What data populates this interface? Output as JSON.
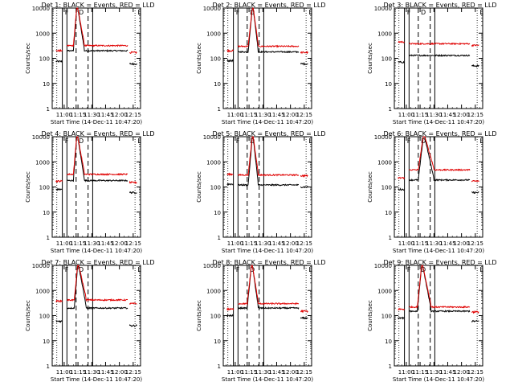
{
  "figure": {
    "background": "#ffffff",
    "axis_color": "#000000",
    "events_color": "#000000",
    "lld_color": "#e00000"
  },
  "chart_data": [
    {
      "type": "line",
      "title": "Det 1: BLACK = Events, RED = LLD",
      "xlabel": "Start Time (14-Dec-11 10:47:20)",
      "ylabel": "Counts/sec",
      "yscale": "log",
      "ylim": [
        1,
        10000
      ],
      "xlim": [
        "10:47",
        "12:23"
      ],
      "x_ticks": [
        "11:00",
        "11:15",
        "11:30",
        "11:45",
        "12:00",
        "12:15"
      ],
      "y_ticks": [
        "1",
        "10",
        "100",
        "1000",
        "10000"
      ],
      "markers": [
        "F",
        "D",
        "L"
      ],
      "dashed": [
        "11:13",
        "11:26"
      ],
      "solid": [
        "10:58",
        "11:03",
        "11:31"
      ],
      "gaps": [
        [
          "10:58",
          "11:03"
        ],
        [
          "11:31",
          "12:10"
        ]
      ],
      "peak": {
        "start": "11:10",
        "peak": "11:14",
        "end": "11:22"
      },
      "series": [
        {
          "name": "BLACK = Events",
          "pre": 75,
          "base": 200,
          "post": 60
        },
        {
          "name": "RED = LLD",
          "pre": 200,
          "base": 320,
          "post": 170
        }
      ]
    },
    {
      "type": "line",
      "title": "Det 2: BLACK = Events, RED = LLD",
      "xlabel": "Start Time (14-Dec-11 10:47:20)",
      "ylabel": "Counts/sec",
      "yscale": "log",
      "ylim": [
        1,
        10000
      ],
      "xlim": [
        "10:47",
        "12:23"
      ],
      "x_ticks": [
        "11:00",
        "11:15",
        "11:30",
        "11:45",
        "12:00",
        "12:15"
      ],
      "y_ticks": [
        "1",
        "10",
        "100",
        "1000",
        "10000"
      ],
      "markers": [
        "F",
        "D",
        "L"
      ],
      "dashed": [
        "11:13",
        "11:26"
      ],
      "solid": [
        "10:58",
        "11:03",
        "11:31"
      ],
      "gaps": [
        [
          "10:58",
          "11:03"
        ],
        [
          "11:31",
          "12:10"
        ]
      ],
      "peak": {
        "start": "11:14",
        "peak": "11:19",
        "end": "11:25"
      },
      "series": [
        {
          "name": "BLACK = Events",
          "pre": 80,
          "base": 180,
          "post": 60
        },
        {
          "name": "RED = LLD",
          "pre": 200,
          "base": 300,
          "post": 170
        }
      ]
    },
    {
      "type": "line",
      "title": "Det 3: BLACK = Events, RED = LLD",
      "xlabel": "Start Time (14-Dec-11 10:47:20)",
      "ylabel": "Counts/sec",
      "yscale": "log",
      "ylim": [
        1,
        10000
      ],
      "xlim": [
        "10:47",
        "12:23"
      ],
      "x_ticks": [
        "11:00",
        "11:15",
        "11:30",
        "11:45",
        "12:00",
        "12:15"
      ],
      "y_ticks": [
        "1",
        "10",
        "100",
        "1000",
        "10000"
      ],
      "markers": [
        "F",
        "D",
        "L"
      ],
      "dashed": [
        "11:13",
        "11:26"
      ],
      "solid": [
        "10:58",
        "11:03",
        "11:31"
      ],
      "gaps": [
        [
          "10:58",
          "11:03"
        ],
        [
          "11:31",
          "12:10"
        ]
      ],
      "peak": null,
      "series": [
        {
          "name": "BLACK = Events",
          "pre": 70,
          "base": 130,
          "post": 50
        },
        {
          "name": "RED = LLD",
          "pre": 450,
          "base": 380,
          "post": 330
        }
      ]
    },
    {
      "type": "line",
      "title": "Det 4: BLACK = Events, RED = LLD",
      "xlabel": "Start Time (14-Dec-11 10:47:20)",
      "ylabel": "Counts/sec",
      "yscale": "log",
      "ylim": [
        1,
        10000
      ],
      "xlim": [
        "10:47",
        "12:23"
      ],
      "x_ticks": [
        "11:00",
        "11:15",
        "11:30",
        "11:45",
        "12:00",
        "12:15"
      ],
      "y_ticks": [
        "1",
        "10",
        "100",
        "1000",
        "10000"
      ],
      "markers": [
        "F",
        "D",
        "L"
      ],
      "dashed": [
        "11:13",
        "11:26"
      ],
      "solid": [
        "10:58",
        "11:03",
        "11:31"
      ],
      "gaps": [
        [
          "10:58",
          "11:03"
        ],
        [
          "11:31",
          "12:10"
        ]
      ],
      "peak": {
        "start": "11:10",
        "peak": "11:14",
        "end": "11:22"
      },
      "series": [
        {
          "name": "BLACK = Events",
          "pre": 80,
          "base": 180,
          "post": 60
        },
        {
          "name": "RED = LLD",
          "pre": 170,
          "base": 320,
          "post": 150
        }
      ]
    },
    {
      "type": "line",
      "title": "Det 5: BLACK = Events, RED = LLD",
      "xlabel": "Start Time (14-Dec-11 10:47:20)",
      "ylabel": "Counts/sec",
      "yscale": "log",
      "ylim": [
        1,
        10000
      ],
      "xlim": [
        "10:47",
        "12:23"
      ],
      "x_ticks": [
        "11:00",
        "11:15",
        "11:30",
        "11:45",
        "12:00",
        "12:15"
      ],
      "y_ticks": [
        "1",
        "10",
        "100",
        "1000",
        "10000"
      ],
      "markers": [
        "F",
        "D",
        "L"
      ],
      "dashed": [
        "11:13",
        "11:26"
      ],
      "solid": [
        "10:58",
        "11:03",
        "11:31"
      ],
      "gaps": [
        [
          "10:58",
          "11:03"
        ],
        [
          "11:31",
          "12:10"
        ]
      ],
      "peak": {
        "start": "11:14",
        "peak": "11:19",
        "end": "11:25"
      },
      "series": [
        {
          "name": "BLACK = Events",
          "pre": 130,
          "base": 120,
          "post": 100
        },
        {
          "name": "RED = LLD",
          "pre": 320,
          "base": 300,
          "post": 280
        }
      ]
    },
    {
      "type": "line",
      "title": "Det 6: BLACK = Events, RED = LLD",
      "xlabel": "Start Time (14-Dec-11 10:47:20)",
      "ylabel": "Counts/sec",
      "yscale": "log",
      "ylim": [
        1,
        10000
      ],
      "xlim": [
        "10:47",
        "12:23"
      ],
      "x_ticks": [
        "11:00",
        "11:15",
        "11:30",
        "11:45",
        "12:00",
        "12:15"
      ],
      "y_ticks": [
        "1",
        "10",
        "100",
        "1000",
        "10000"
      ],
      "markers": [
        "F",
        "D",
        "L"
      ],
      "dashed": [
        "11:13",
        "11:26"
      ],
      "solid": [
        "10:58",
        "11:03",
        "11:31"
      ],
      "gaps": [
        [
          "10:58",
          "11:03"
        ],
        [
          "11:31",
          "12:10"
        ]
      ],
      "peak": {
        "start": "11:13",
        "peak": "11:19",
        "end": "11:30"
      },
      "series": [
        {
          "name": "BLACK = Events",
          "pre": 80,
          "base": 190,
          "post": 60
        },
        {
          "name": "RED = LLD",
          "pre": 230,
          "base": 480,
          "post": 170
        }
      ]
    },
    {
      "type": "line",
      "title": "Det 7: BLACK = Events, RED = LLD",
      "xlabel": "Start Time (14-Dec-11 10:47:20)",
      "ylabel": "Counts/sec",
      "yscale": "log",
      "ylim": [
        1,
        10000
      ],
      "xlim": [
        "10:47",
        "12:23"
      ],
      "x_ticks": [
        "11:00",
        "11:15",
        "11:30",
        "11:45",
        "12:00",
        "12:15"
      ],
      "y_ticks": [
        "1",
        "10",
        "100",
        "1000",
        "10000"
      ],
      "markers": [
        "F",
        "D",
        "L"
      ],
      "dashed": [
        "11:13",
        "11:26"
      ],
      "solid": [
        "10:58",
        "11:03",
        "11:31"
      ],
      "gaps": [
        [
          "10:58",
          "11:03"
        ],
        [
          "11:31",
          "12:10"
        ]
      ],
      "peak": {
        "start": "11:11",
        "peak": "11:15",
        "end": "11:24"
      },
      "series": [
        {
          "name": "BLACK = Events",
          "pre": 60,
          "base": 200,
          "post": 40
        },
        {
          "name": "RED = LLD",
          "pre": 380,
          "base": 420,
          "post": 300
        }
      ]
    },
    {
      "type": "line",
      "title": "Det 8: BLACK = Events, RED = LLD",
      "xlabel": "Start Time (14-Dec-11 10:47:20)",
      "ylabel": "Counts/sec",
      "yscale": "log",
      "ylim": [
        1,
        10000
      ],
      "xlim": [
        "10:47",
        "12:23"
      ],
      "x_ticks": [
        "11:00",
        "11:15",
        "11:30",
        "11:45",
        "12:00",
        "12:15"
      ],
      "y_ticks": [
        "1",
        "10",
        "100",
        "1000",
        "10000"
      ],
      "markers": [
        "F",
        "D",
        "L"
      ],
      "dashed": [
        "11:13",
        "11:26"
      ],
      "solid": [
        "10:58",
        "11:03",
        "11:31"
      ],
      "gaps": [
        [
          "10:58",
          "11:03"
        ],
        [
          "11:31",
          "12:10"
        ]
      ],
      "peak": {
        "start": "11:13",
        "peak": "11:18",
        "end": "11:25"
      },
      "series": [
        {
          "name": "BLACK = Events",
          "pre": 100,
          "base": 200,
          "post": 80
        },
        {
          "name": "RED = LLD",
          "pre": 180,
          "base": 300,
          "post": 150
        }
      ]
    },
    {
      "type": "line",
      "title": "Det 9: BLACK = Events, RED = LLD",
      "xlabel": "Start Time (14-Dec-11 10:47:20)",
      "ylabel": "Counts/sec",
      "yscale": "log",
      "ylim": [
        1,
        10000
      ],
      "xlim": [
        "10:47",
        "12:23"
      ],
      "x_ticks": [
        "11:00",
        "11:15",
        "11:30",
        "11:45",
        "12:00",
        "12:15"
      ],
      "y_ticks": [
        "1",
        "10",
        "100",
        "1000",
        "10000"
      ],
      "markers": [
        "F",
        "D",
        "L"
      ],
      "dashed": [
        "11:13",
        "11:26"
      ],
      "solid": [
        "10:58",
        "11:03",
        "11:31"
      ],
      "gaps": [
        [
          "10:58",
          "11:03"
        ],
        [
          "11:31",
          "12:10"
        ]
      ],
      "peak": {
        "start": "11:12",
        "peak": "11:17",
        "end": "11:27"
      },
      "series": [
        {
          "name": "BLACK = Events",
          "pre": 80,
          "base": 150,
          "post": 60
        },
        {
          "name": "RED = LLD",
          "pre": 180,
          "base": 220,
          "post": 140
        }
      ]
    }
  ]
}
